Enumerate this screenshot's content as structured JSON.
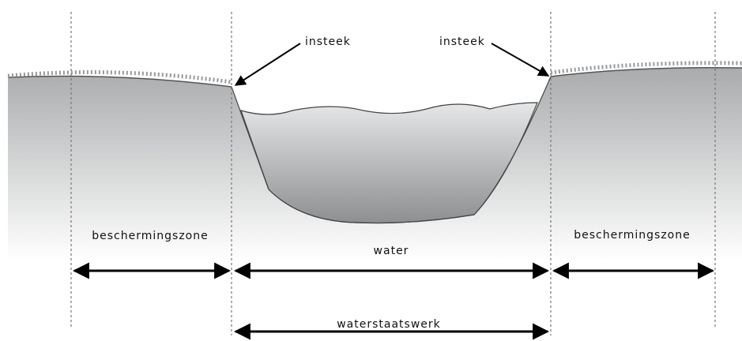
{
  "insteek": [
    "insteek",
    "insteek"
  ],
  "zones": [
    "beschermingszone",
    "water",
    "beschermingszone"
  ],
  "total": "waterstaatswerk"
}
